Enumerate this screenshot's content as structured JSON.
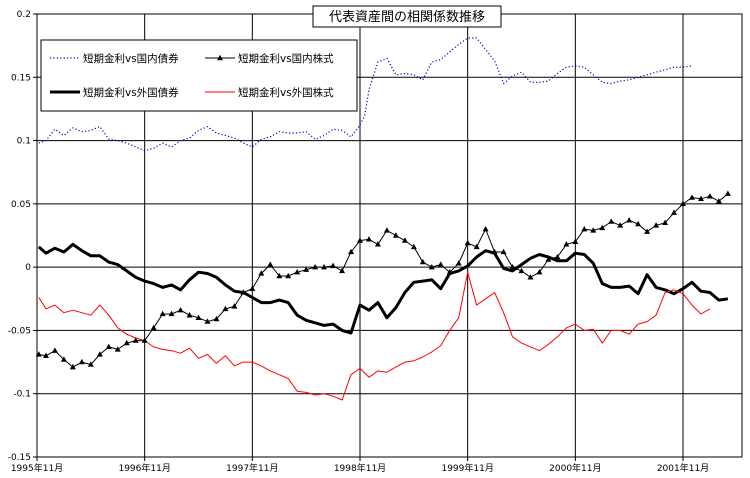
{
  "chart_data": {
    "type": "line",
    "title": "代表資産間の相関係数推移",
    "ylim": [
      -0.15,
      0.2
    ],
    "yticks": [
      0.2,
      0.15,
      0.1,
      0.05,
      0,
      -0.05,
      -0.1,
      -0.15
    ],
    "ytick_labels": [
      "0.2",
      "0.15",
      "0.1",
      "0.05",
      "0",
      "-0.05",
      "-0.1",
      "-0.15"
    ],
    "xlim": [
      0,
      72
    ],
    "x_ticks": [
      {
        "pos": 0,
        "label": "1995年11月"
      },
      {
        "pos": 12,
        "label": "1996年11月"
      },
      {
        "pos": 24,
        "label": "1997年11月"
      },
      {
        "pos": 36,
        "label": "1998年11月"
      },
      {
        "pos": 48,
        "label": "1999年11月"
      },
      {
        "pos": 60,
        "label": "2000年11月"
      },
      {
        "pos": 72,
        "label": "2001年11月"
      }
    ],
    "x_unit": "months since 1995年11月",
    "grid": true,
    "legend_position": "top-left",
    "series": [
      {
        "name": "短期金利vs国内債券",
        "color": "#0000cc",
        "style": "dotted",
        "marker": "none",
        "points": [
          [
            0.2,
            0.098
          ],
          [
            1,
            0.1
          ],
          [
            2,
            0.109
          ],
          [
            3,
            0.104
          ],
          [
            4,
            0.11
          ],
          [
            5,
            0.107
          ],
          [
            6,
            0.108
          ],
          [
            7,
            0.111
          ],
          [
            8,
            0.101
          ],
          [
            9,
            0.1
          ],
          [
            10,
            0.098
          ],
          [
            11,
            0.095
          ],
          [
            12,
            0.092
          ],
          [
            13,
            0.094
          ],
          [
            14,
            0.098
          ],
          [
            15,
            0.095
          ],
          [
            16,
            0.1
          ],
          [
            17,
            0.102
          ],
          [
            18,
            0.108
          ],
          [
            19,
            0.111
          ],
          [
            20,
            0.106
          ],
          [
            21,
            0.104
          ],
          [
            22,
            0.102
          ],
          [
            23,
            0.098
          ],
          [
            24,
            0.095
          ],
          [
            25,
            0.101
          ],
          [
            26,
            0.103
          ],
          [
            27,
            0.107
          ],
          [
            28,
            0.106
          ],
          [
            29,
            0.106
          ],
          [
            30,
            0.107
          ],
          [
            31,
            0.101
          ],
          [
            32,
            0.104
          ],
          [
            33,
            0.109
          ],
          [
            34,
            0.108
          ],
          [
            35,
            0.103
          ],
          [
            35.8,
            0.11
          ],
          [
            36.5,
            0.119
          ],
          [
            37,
            0.14
          ],
          [
            38,
            0.162
          ],
          [
            39,
            0.165
          ],
          [
            40,
            0.152
          ],
          [
            41,
            0.153
          ],
          [
            42,
            0.152
          ],
          [
            43,
            0.148
          ],
          [
            44,
            0.162
          ],
          [
            45,
            0.164
          ],
          [
            46,
            0.17
          ],
          [
            47,
            0.176
          ],
          [
            48,
            0.181
          ],
          [
            49,
            0.181
          ],
          [
            50,
            0.172
          ],
          [
            51,
            0.163
          ],
          [
            52,
            0.145
          ],
          [
            53,
            0.151
          ],
          [
            54,
            0.154
          ],
          [
            55,
            0.146
          ],
          [
            56,
            0.146
          ],
          [
            57,
            0.147
          ],
          [
            58,
            0.153
          ],
          [
            59,
            0.158
          ],
          [
            60,
            0.159
          ],
          [
            61,
            0.158
          ],
          [
            62,
            0.152
          ],
          [
            63,
            0.146
          ],
          [
            64,
            0.145
          ],
          [
            65,
            0.147
          ],
          [
            66,
            0.148
          ],
          [
            67,
            0.15
          ],
          [
            68,
            0.152
          ],
          [
            69,
            0.154
          ],
          [
            70,
            0.156
          ],
          [
            71,
            0.158
          ],
          [
            72,
            0.158
          ],
          [
            73,
            0.159
          ]
        ]
      },
      {
        "name": "短期金利vs国内株式",
        "color": "#000000",
        "style": "solid",
        "marker": "triangle",
        "points": [
          [
            0.2,
            -0.069
          ],
          [
            1,
            -0.07
          ],
          [
            2,
            -0.066
          ],
          [
            3,
            -0.073
          ],
          [
            4,
            -0.079
          ],
          [
            5,
            -0.075
          ],
          [
            6,
            -0.077
          ],
          [
            7,
            -0.069
          ],
          [
            8,
            -0.063
          ],
          [
            9,
            -0.065
          ],
          [
            10,
            -0.06
          ],
          [
            11,
            -0.058
          ],
          [
            12,
            -0.058
          ],
          [
            13,
            -0.048
          ],
          [
            14,
            -0.037
          ],
          [
            15,
            -0.037
          ],
          [
            16,
            -0.034
          ],
          [
            17,
            -0.038
          ],
          [
            18,
            -0.04
          ],
          [
            19,
            -0.043
          ],
          [
            20,
            -0.041
          ],
          [
            21,
            -0.033
          ],
          [
            22,
            -0.031
          ],
          [
            23,
            -0.02
          ],
          [
            24,
            -0.017
          ],
          [
            25,
            -0.005
          ],
          [
            26,
            0.002
          ],
          [
            27,
            -0.007
          ],
          [
            28,
            -0.007
          ],
          [
            29,
            -0.004
          ],
          [
            30,
            -0.002
          ],
          [
            31,
            0.0
          ],
          [
            32,
            0.0
          ],
          [
            33,
            0.001
          ],
          [
            34,
            -0.003
          ],
          [
            35,
            0.012
          ],
          [
            36,
            0.021
          ],
          [
            37,
            0.022
          ],
          [
            38,
            0.018
          ],
          [
            39,
            0.029
          ],
          [
            40,
            0.025
          ],
          [
            41,
            0.021
          ],
          [
            42,
            0.016
          ],
          [
            43,
            0.004
          ],
          [
            44,
            0.0
          ],
          [
            45,
            0.002
          ],
          [
            46,
            -0.004
          ],
          [
            47,
            0.003
          ],
          [
            48,
            0.019
          ],
          [
            49,
            0.016
          ],
          [
            50,
            0.03
          ],
          [
            51,
            0.012
          ],
          [
            52,
            0.012
          ],
          [
            53,
            0.0
          ],
          [
            54,
            -0.003
          ],
          [
            55,
            -0.008
          ],
          [
            56,
            -0.004
          ],
          [
            57,
            0.006
          ],
          [
            58,
            0.008
          ],
          [
            59,
            0.018
          ],
          [
            60,
            0.02
          ],
          [
            61,
            0.03
          ],
          [
            62,
            0.029
          ],
          [
            63,
            0.031
          ],
          [
            64,
            0.036
          ],
          [
            65,
            0.033
          ],
          [
            66,
            0.037
          ],
          [
            67,
            0.034
          ],
          [
            68,
            0.028
          ],
          [
            69,
            0.033
          ],
          [
            70,
            0.035
          ],
          [
            71,
            0.043
          ],
          [
            72,
            0.05
          ],
          [
            73,
            0.055
          ],
          [
            74,
            0.054
          ],
          [
            75,
            0.056
          ],
          [
            76,
            0.052
          ],
          [
            77,
            0.058
          ]
        ]
      },
      {
        "name": "短期金利vs外国債券",
        "color": "#000000",
        "style": "solid",
        "width": 3,
        "marker": "none",
        "points": [
          [
            0.2,
            0.016
          ],
          [
            1,
            0.011
          ],
          [
            2,
            0.015
          ],
          [
            3,
            0.012
          ],
          [
            4,
            0.018
          ],
          [
            5,
            0.013
          ],
          [
            6,
            0.009
          ],
          [
            7,
            0.009
          ],
          [
            8,
            0.004
          ],
          [
            9,
            0.002
          ],
          [
            10,
            -0.003
          ],
          [
            11,
            -0.008
          ],
          [
            12,
            -0.011
          ],
          [
            13,
            -0.013
          ],
          [
            14,
            -0.016
          ],
          [
            15,
            -0.014
          ],
          [
            16,
            -0.018
          ],
          [
            17,
            -0.01
          ],
          [
            18,
            -0.004
          ],
          [
            19,
            -0.005
          ],
          [
            20,
            -0.008
          ],
          [
            21,
            -0.014
          ],
          [
            22,
            -0.019
          ],
          [
            23,
            -0.02
          ],
          [
            24,
            -0.024
          ],
          [
            25,
            -0.028
          ],
          [
            26,
            -0.028
          ],
          [
            27,
            -0.026
          ],
          [
            28,
            -0.028
          ],
          [
            29,
            -0.038
          ],
          [
            30,
            -0.042
          ],
          [
            31,
            -0.044
          ],
          [
            32,
            -0.046
          ],
          [
            33,
            -0.045
          ],
          [
            34,
            -0.05
          ],
          [
            35,
            -0.052
          ],
          [
            36,
            -0.03
          ],
          [
            37,
            -0.034
          ],
          [
            38,
            -0.028
          ],
          [
            39,
            -0.04
          ],
          [
            40,
            -0.032
          ],
          [
            41,
            -0.02
          ],
          [
            42,
            -0.012
          ],
          [
            43,
            -0.011
          ],
          [
            44,
            -0.01
          ],
          [
            45,
            -0.017
          ],
          [
            46,
            -0.005
          ],
          [
            47,
            -0.003
          ],
          [
            48,
            0.001
          ],
          [
            49,
            0.008
          ],
          [
            50,
            0.013
          ],
          [
            51,
            0.011
          ],
          [
            52,
            -0.001
          ],
          [
            53,
            -0.003
          ],
          [
            54,
            0.002
          ],
          [
            55,
            0.007
          ],
          [
            56,
            0.01
          ],
          [
            57,
            0.008
          ],
          [
            58,
            0.005
          ],
          [
            59,
            0.005
          ],
          [
            60,
            0.011
          ],
          [
            61,
            0.01
          ],
          [
            62,
            0.003
          ],
          [
            63,
            -0.013
          ],
          [
            64,
            -0.016
          ],
          [
            65,
            -0.016
          ],
          [
            66,
            -0.015
          ],
          [
            67,
            -0.021
          ],
          [
            68,
            -0.006
          ],
          [
            69,
            -0.016
          ],
          [
            70,
            -0.018
          ],
          [
            71,
            -0.021
          ],
          [
            72,
            -0.017
          ],
          [
            73,
            -0.012
          ],
          [
            74,
            -0.019
          ],
          [
            75,
            -0.02
          ],
          [
            76,
            -0.026
          ],
          [
            77,
            -0.025
          ]
        ]
      },
      {
        "name": "短期金利vs外国株式",
        "color": "#ff0000",
        "style": "solid",
        "marker": "none",
        "points": [
          [
            0.2,
            -0.024
          ],
          [
            1,
            -0.033
          ],
          [
            2,
            -0.03
          ],
          [
            3,
            -0.036
          ],
          [
            4,
            -0.034
          ],
          [
            5,
            -0.036
          ],
          [
            6,
            -0.038
          ],
          [
            7,
            -0.03
          ],
          [
            8,
            -0.038
          ],
          [
            9,
            -0.048
          ],
          [
            10,
            -0.053
          ],
          [
            11,
            -0.056
          ],
          [
            12,
            -0.058
          ],
          [
            13,
            -0.063
          ],
          [
            14,
            -0.065
          ],
          [
            15,
            -0.066
          ],
          [
            16,
            -0.068
          ],
          [
            17,
            -0.064
          ],
          [
            18,
            -0.072
          ],
          [
            19,
            -0.069
          ],
          [
            20,
            -0.076
          ],
          [
            21,
            -0.07
          ],
          [
            22,
            -0.078
          ],
          [
            23,
            -0.075
          ],
          [
            24,
            -0.075
          ],
          [
            25,
            -0.078
          ],
          [
            26,
            -0.082
          ],
          [
            27,
            -0.085
          ],
          [
            28,
            -0.088
          ],
          [
            29,
            -0.098
          ],
          [
            30,
            -0.099
          ],
          [
            31,
            -0.101
          ],
          [
            32,
            -0.1
          ],
          [
            33,
            -0.102
          ],
          [
            34,
            -0.105
          ],
          [
            35,
            -0.085
          ],
          [
            36,
            -0.08
          ],
          [
            37,
            -0.087
          ],
          [
            38,
            -0.082
          ],
          [
            39,
            -0.083
          ],
          [
            40,
            -0.079
          ],
          [
            41,
            -0.075
          ],
          [
            42,
            -0.074
          ],
          [
            43,
            -0.071
          ],
          [
            44,
            -0.067
          ],
          [
            45,
            -0.062
          ],
          [
            46,
            -0.05
          ],
          [
            47,
            -0.04
          ],
          [
            48,
            -0.004
          ],
          [
            49,
            -0.03
          ],
          [
            50,
            -0.025
          ],
          [
            51,
            -0.02
          ],
          [
            52,
            -0.036
          ],
          [
            53,
            -0.055
          ],
          [
            54,
            -0.06
          ],
          [
            55,
            -0.063
          ],
          [
            56,
            -0.066
          ],
          [
            57,
            -0.061
          ],
          [
            58,
            -0.055
          ],
          [
            59,
            -0.048
          ],
          [
            60,
            -0.045
          ],
          [
            61,
            -0.05
          ],
          [
            62,
            -0.049
          ],
          [
            63,
            -0.06
          ],
          [
            64,
            -0.05
          ],
          [
            65,
            -0.05
          ],
          [
            66,
            -0.053
          ],
          [
            67,
            -0.045
          ],
          [
            68,
            -0.043
          ],
          [
            69,
            -0.038
          ],
          [
            70,
            -0.02
          ],
          [
            71,
            -0.018
          ],
          [
            72,
            -0.021
          ],
          [
            73,
            -0.03
          ],
          [
            74,
            -0.037
          ],
          [
            75,
            -0.033
          ]
        ]
      }
    ]
  }
}
